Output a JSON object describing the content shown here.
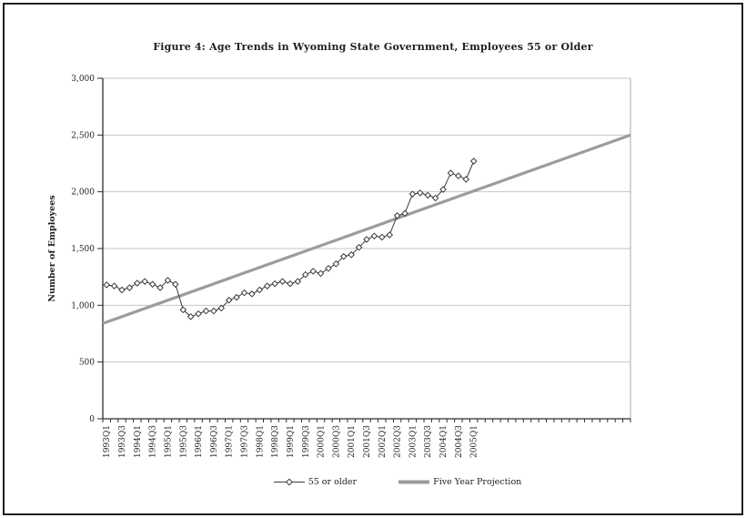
{
  "figure": {
    "title": "Figure 4: Age Trends in Wyoming State Government, Employees 55 or Older"
  },
  "chart_data": {
    "type": "line",
    "title": "Figure 4: Age Trends in Wyoming State Government, Employees 55 or Older",
    "xlabel": "",
    "ylabel": "Number of Employees",
    "ylim": [
      0,
      3000
    ],
    "ytick_step": 500,
    "ytick_labels": [
      "0",
      "500",
      "1,000",
      "1,500",
      "2,000",
      "2,500",
      "3,000"
    ],
    "grid": true,
    "legend_position": "bottom",
    "x_total_quarters": 69,
    "xtick_label_every": 2,
    "categories": [
      "1993Q1",
      "1993Q2",
      "1993Q3",
      "1993Q4",
      "1994Q1",
      "1994Q2",
      "1994Q3",
      "1994Q4",
      "1995Q1",
      "1995Q2",
      "1995Q3",
      "1995Q4",
      "1996Q1",
      "1996Q2",
      "1996Q3",
      "1996Q4",
      "1997Q1",
      "1997Q2",
      "1997Q3",
      "1997Q4",
      "1998Q1",
      "1998Q2",
      "1998Q3",
      "1998Q4",
      "1999Q1",
      "1999Q2",
      "1999Q3",
      "1999Q4",
      "2000Q1",
      "2000Q2",
      "2000Q3",
      "2000Q4",
      "2001Q1",
      "2001Q2",
      "2001Q3",
      "2001Q4",
      "2002Q1",
      "2002Q2",
      "2002Q3",
      "2002Q4",
      "2003Q1",
      "2003Q2",
      "2003Q3",
      "2003Q4",
      "2004Q1",
      "2004Q2",
      "2004Q3",
      "2004Q4",
      "2005Q1"
    ],
    "series": [
      {
        "name": "55 or older",
        "type": "line",
        "marker": "diamond",
        "color": "#3c3c3c",
        "marker_fill": "#ffffff",
        "values": [
          1180,
          1170,
          1135,
          1155,
          1195,
          1210,
          1185,
          1155,
          1220,
          1185,
          960,
          900,
          925,
          950,
          950,
          975,
          1045,
          1070,
          1110,
          1100,
          1135,
          1170,
          1190,
          1210,
          1190,
          1210,
          1270,
          1300,
          1280,
          1325,
          1365,
          1430,
          1445,
          1510,
          1580,
          1610,
          1600,
          1620,
          1790,
          1810,
          1980,
          1990,
          1970,
          1945,
          2020,
          2165,
          2140,
          2110,
          2270
        ]
      },
      {
        "name": "Five Year Projection",
        "type": "trend",
        "color": "#9c9c9c",
        "start_value": 840,
        "end_value": 2500,
        "spans": "full-axis"
      }
    ]
  },
  "colors": {
    "grid": "#c6c6c6",
    "axis": "#2e2e2e",
    "text": "#1f1f1f",
    "plot_right_border": "#a8a8a8",
    "page_border": "#1f1f1f",
    "background": "#ffffff"
  }
}
